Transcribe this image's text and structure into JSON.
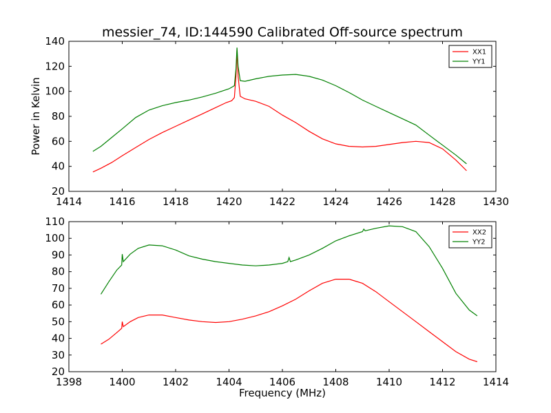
{
  "chart_data": [
    {
      "type": "line",
      "title": "messier_74, ID:144590 Calibrated Off-source spectrum",
      "xlabel": "",
      "ylabel": "Power in Kelvin",
      "xlim": [
        1414,
        1430
      ],
      "ylim": [
        20,
        140
      ],
      "xticks": [
        1414,
        1416,
        1418,
        1420,
        1422,
        1424,
        1426,
        1428,
        1430
      ],
      "yticks": [
        20,
        40,
        60,
        80,
        100,
        120,
        140
      ],
      "grid": false,
      "legend": "top-right",
      "series": [
        {
          "name": "XX1",
          "color": "#ff0000",
          "points": [
            [
              1414.9,
              35.5
            ],
            [
              1415.2,
              38.5
            ],
            [
              1415.6,
              43
            ],
            [
              1416.0,
              48.5
            ],
            [
              1416.5,
              55
            ],
            [
              1417.0,
              61.5
            ],
            [
              1417.5,
              67
            ],
            [
              1418.0,
              72
            ],
            [
              1418.5,
              77
            ],
            [
              1419.0,
              82
            ],
            [
              1419.5,
              87
            ],
            [
              1419.9,
              91
            ],
            [
              1420.1,
              92.5
            ],
            [
              1420.2,
              95
            ],
            [
              1420.26,
              112
            ],
            [
              1420.3,
              133
            ],
            [
              1420.34,
              112
            ],
            [
              1420.42,
              96
            ],
            [
              1420.6,
              94
            ],
            [
              1421.0,
              92
            ],
            [
              1421.5,
              88
            ],
            [
              1422.0,
              81
            ],
            [
              1422.5,
              75
            ],
            [
              1423.0,
              68
            ],
            [
              1423.5,
              62
            ],
            [
              1424.0,
              58
            ],
            [
              1424.5,
              56
            ],
            [
              1425.0,
              55.5
            ],
            [
              1425.5,
              56
            ],
            [
              1426.0,
              57.5
            ],
            [
              1426.5,
              59
            ],
            [
              1427.0,
              60
            ],
            [
              1427.5,
              59
            ],
            [
              1428.0,
              54
            ],
            [
              1428.5,
              45
            ],
            [
              1428.9,
              36.5
            ]
          ]
        },
        {
          "name": "YY1",
          "color": "#008000",
          "points": [
            [
              1414.9,
              52
            ],
            [
              1415.2,
              56
            ],
            [
              1415.6,
              63
            ],
            [
              1416.0,
              70
            ],
            [
              1416.5,
              79
            ],
            [
              1417.0,
              85
            ],
            [
              1417.5,
              88.5
            ],
            [
              1418.0,
              91
            ],
            [
              1418.5,
              93
            ],
            [
              1419.0,
              95.5
            ],
            [
              1419.5,
              98.5
            ],
            [
              1420.0,
              102
            ],
            [
              1420.2,
              104.5
            ],
            [
              1420.26,
              118
            ],
            [
              1420.3,
              135
            ],
            [
              1420.34,
              120
            ],
            [
              1420.42,
              108.5
            ],
            [
              1420.6,
              108
            ],
            [
              1421.0,
              110
            ],
            [
              1421.5,
              112
            ],
            [
              1422.0,
              113
            ],
            [
              1422.5,
              113.5
            ],
            [
              1423.0,
              112
            ],
            [
              1423.5,
              109
            ],
            [
              1424.0,
              104.5
            ],
            [
              1424.5,
              99
            ],
            [
              1425.0,
              93
            ],
            [
              1425.5,
              88
            ],
            [
              1426.0,
              83
            ],
            [
              1426.5,
              78
            ],
            [
              1427.0,
              73
            ],
            [
              1427.5,
              65
            ],
            [
              1428.0,
              57
            ],
            [
              1428.5,
              49
            ],
            [
              1428.9,
              42
            ]
          ]
        }
      ]
    },
    {
      "type": "line",
      "title": "",
      "xlabel": "Frequency (MHz)",
      "ylabel": "",
      "xlim": [
        1398,
        1414
      ],
      "ylim": [
        20,
        110
      ],
      "xticks": [
        1398,
        1400,
        1402,
        1404,
        1406,
        1408,
        1410,
        1412,
        1414
      ],
      "yticks": [
        20,
        30,
        40,
        50,
        60,
        70,
        80,
        90,
        100,
        110
      ],
      "grid": false,
      "legend": "top-right",
      "series": [
        {
          "name": "XX2",
          "color": "#ff0000",
          "points": [
            [
              1399.2,
              36.5
            ],
            [
              1399.5,
              39.5
            ],
            [
              1399.8,
              43.5
            ],
            [
              1399.98,
              46
            ],
            [
              1400.0,
              50
            ],
            [
              1400.04,
              47
            ],
            [
              1400.3,
              50
            ],
            [
              1400.6,
              52.5
            ],
            [
              1401.0,
              54
            ],
            [
              1401.5,
              54
            ],
            [
              1402.0,
              52.5
            ],
            [
              1402.5,
              51
            ],
            [
              1403.0,
              50
            ],
            [
              1403.5,
              49.5
            ],
            [
              1404.0,
              50
            ],
            [
              1404.5,
              51.5
            ],
            [
              1405.0,
              53.5
            ],
            [
              1405.5,
              56
            ],
            [
              1406.0,
              59.5
            ],
            [
              1406.5,
              63.5
            ],
            [
              1407.0,
              68.5
            ],
            [
              1407.5,
              73
            ],
            [
              1408.0,
              75.5
            ],
            [
              1408.5,
              75.5
            ],
            [
              1409.0,
              73
            ],
            [
              1409.5,
              68
            ],
            [
              1410.0,
              62
            ],
            [
              1410.5,
              56
            ],
            [
              1411.0,
              50
            ],
            [
              1411.5,
              44
            ],
            [
              1412.0,
              38
            ],
            [
              1412.5,
              32
            ],
            [
              1413.0,
              27.5
            ],
            [
              1413.3,
              26
            ]
          ]
        },
        {
          "name": "YY2",
          "color": "#008000",
          "points": [
            [
              1399.2,
              66.5
            ],
            [
              1399.5,
              74
            ],
            [
              1399.8,
              81
            ],
            [
              1399.98,
              84
            ],
            [
              1400.0,
              90.5
            ],
            [
              1400.04,
              86
            ],
            [
              1400.3,
              90.5
            ],
            [
              1400.6,
              94
            ],
            [
              1401.0,
              96
            ],
            [
              1401.5,
              95.5
            ],
            [
              1402.0,
              93
            ],
            [
              1402.5,
              89.5
            ],
            [
              1403.0,
              87.5
            ],
            [
              1403.5,
              86
            ],
            [
              1404.0,
              85
            ],
            [
              1404.5,
              84
            ],
            [
              1405.0,
              83.5
            ],
            [
              1405.5,
              84
            ],
            [
              1406.0,
              85
            ],
            [
              1406.2,
              86
            ],
            [
              1406.25,
              88.5
            ],
            [
              1406.3,
              86
            ],
            [
              1406.5,
              87
            ],
            [
              1407.0,
              90
            ],
            [
              1407.5,
              94
            ],
            [
              1408.0,
              98.5
            ],
            [
              1408.5,
              101.5
            ],
            [
              1409.0,
              104
            ],
            [
              1409.05,
              105.5
            ],
            [
              1409.1,
              104.5
            ],
            [
              1409.5,
              106
            ],
            [
              1410.0,
              107.5
            ],
            [
              1410.5,
              107
            ],
            [
              1411.0,
              104
            ],
            [
              1411.5,
              95
            ],
            [
              1412.0,
              82
            ],
            [
              1412.5,
              67
            ],
            [
              1413.0,
              57
            ],
            [
              1413.3,
              53.5
            ]
          ]
        }
      ]
    }
  ]
}
